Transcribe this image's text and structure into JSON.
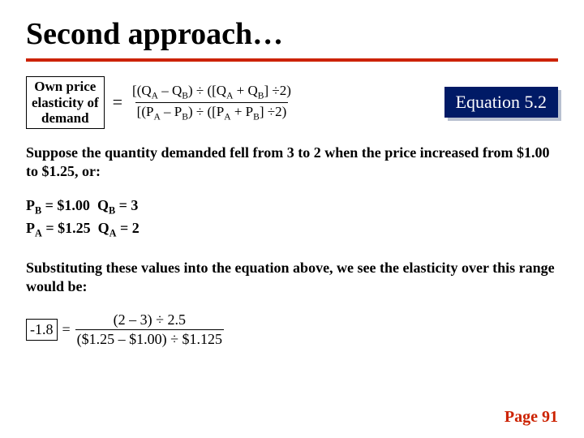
{
  "title": "Second approach…",
  "rule_color": "#cc2200",
  "lhs_label": "Own price elasticity of demand",
  "equals": "=",
  "formula": {
    "num_plain": "[(QA – QB) ÷ ([QA + QB] ÷2)",
    "den_plain": "[(PA – PB) ÷ ([PA + PB] ÷2)"
  },
  "equation_badge": {
    "text": "Equation 5.2",
    "bg": "#001a66",
    "fg": "#ffffff",
    "shadow": "#b8c0d0"
  },
  "scenario_text": "Suppose the quantity demanded fell from 3 to 2 when the price increased from $1.00 to $1.25, or:",
  "values": {
    "PB": "PB = $1.00",
    "QB": "QB = 3",
    "PA": "PA = $1.25",
    "QA": "QA = 2"
  },
  "substitute_text": "Substituting these values into the equation above, we see the elasticity over this range would be:",
  "result_value": "-1.8",
  "result_formula": {
    "num": "(2 – 3) ÷ 2.5",
    "den": "($1.25 – $1.00) ÷ $1.125"
  },
  "page_label": "Page 91",
  "fonts": {
    "title_size": 38,
    "body_size": 18,
    "badge_size": 22
  }
}
